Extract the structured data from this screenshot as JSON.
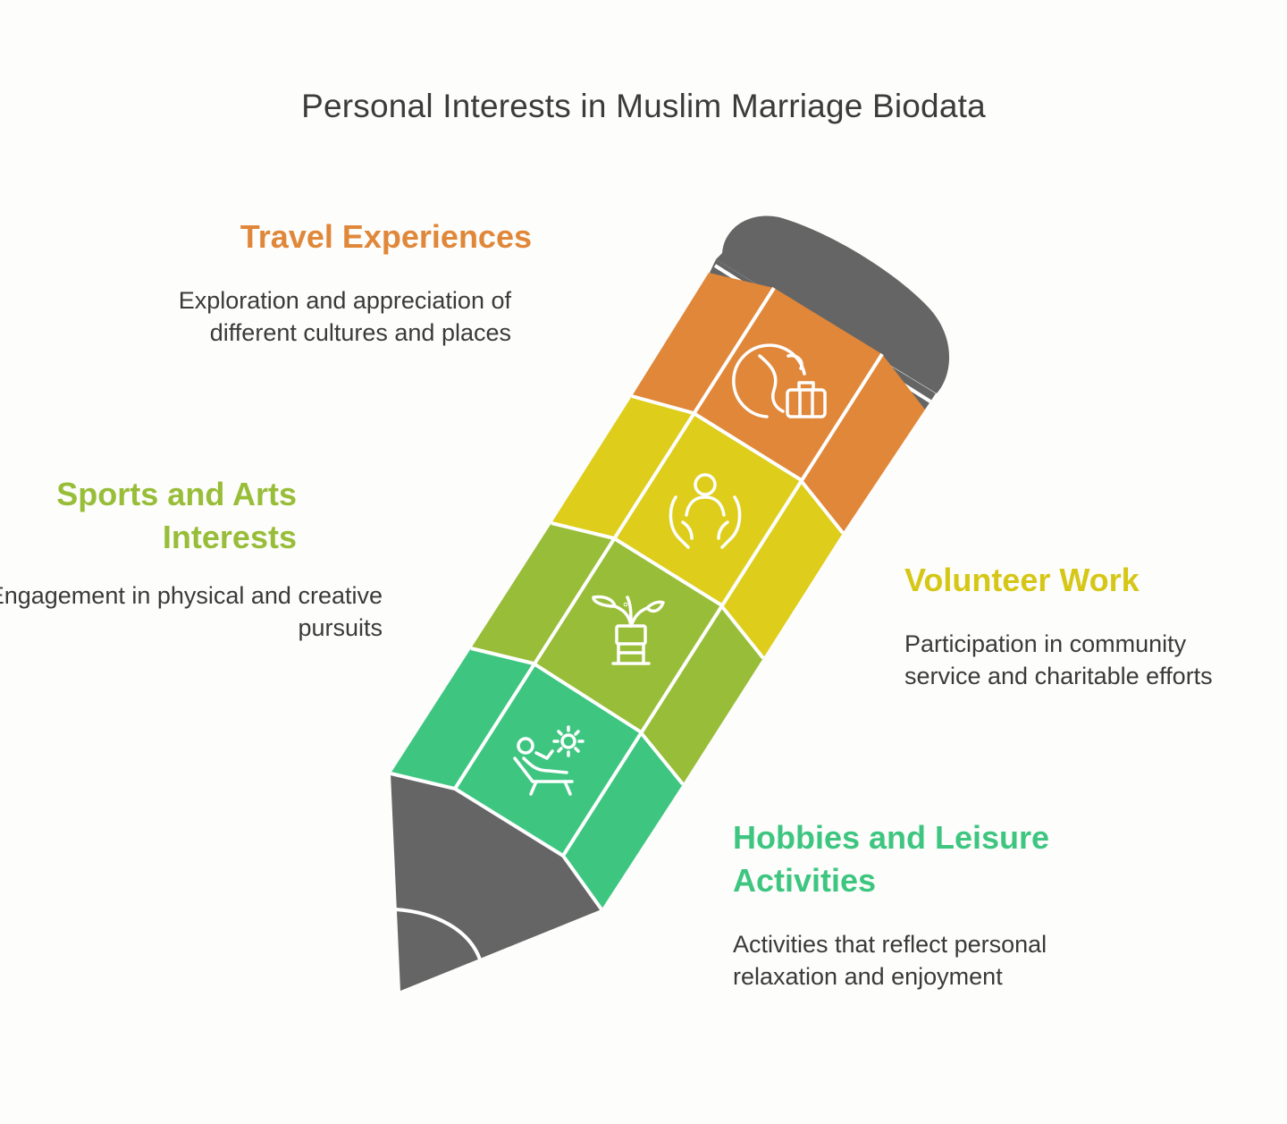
{
  "title": "Personal Interests in Muslim Marriage Biodata",
  "colors": {
    "orange": "#e0873a",
    "yellow": "#decd1b",
    "green": "#98bd38",
    "teal": "#3ec681",
    "gray": "#656565",
    "background": "#fdfdfb"
  },
  "sections": [
    {
      "heading": "Travel Experiences",
      "description": "Exploration and appreciation of different cultures and places",
      "icon": "globe-luggage-icon",
      "color": "#e0873a"
    },
    {
      "heading": "Volunteer Work",
      "description": "Participation in community service and charitable efforts",
      "icon": "helping-hands-person-icon",
      "color": "#decd1b"
    },
    {
      "heading": "Sports and Arts Interests",
      "description": "Engagement in physical and creative pursuits",
      "icon": "potted-plant-icon",
      "color": "#98bd38"
    },
    {
      "heading": "Hobbies and Leisure Activities",
      "description": "Activities that reflect personal relaxation and enjoyment",
      "icon": "sun-lounger-icon",
      "color": "#3ec681"
    }
  ]
}
